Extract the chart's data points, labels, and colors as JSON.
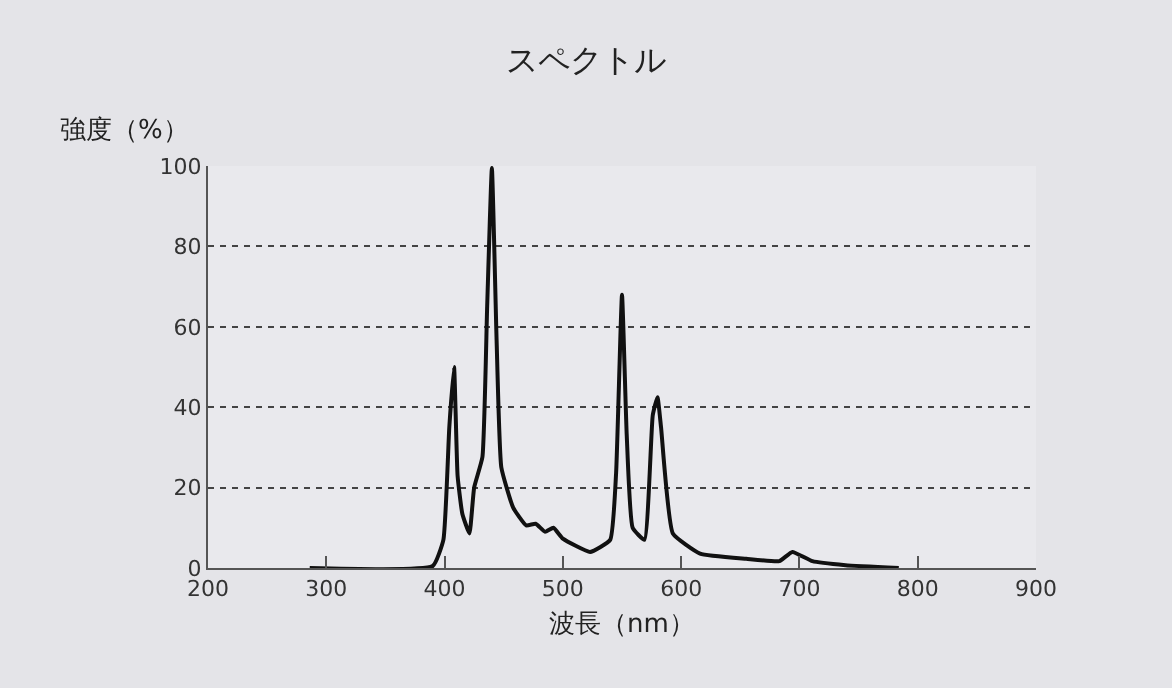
{
  "chart_data": {
    "type": "line",
    "title": "スペクトル",
    "xlabel": "波長（nm）",
    "ylabel": "強度（%）",
    "x": [
      286,
      390,
      399,
      404,
      408,
      411,
      415,
      421,
      425,
      432,
      436,
      440,
      444,
      448,
      458,
      469,
      477,
      485,
      492,
      500,
      523,
      540,
      545,
      550,
      554,
      559,
      569,
      576,
      580,
      583,
      593,
      616,
      655,
      683,
      694,
      711,
      739,
      784
    ],
    "series": [
      {
        "color": "#111111",
        "values": [
          0,
          0.5,
          7,
          35,
          50,
          23,
          13.5,
          8.6,
          20,
          27.6,
          65,
          99.5,
          56.5,
          25,
          15,
          10.6,
          11,
          9,
          10,
          7.3,
          4,
          7,
          23.5,
          68,
          33,
          10,
          7,
          38,
          42.5,
          35,
          8.6,
          3.6,
          2.3,
          1.7,
          4,
          1.7,
          0.7,
          0
        ]
      }
    ],
    "xlim": [
      200,
      900
    ],
    "xticks": [
      200,
      300,
      400,
      500,
      600,
      700,
      800,
      900
    ],
    "ylim": [
      0,
      100
    ],
    "yticks": [
      0,
      20,
      40,
      60,
      80,
      100
    ],
    "grid": "y",
    "legend": false,
    "marker": "none",
    "line_style": "solid"
  }
}
